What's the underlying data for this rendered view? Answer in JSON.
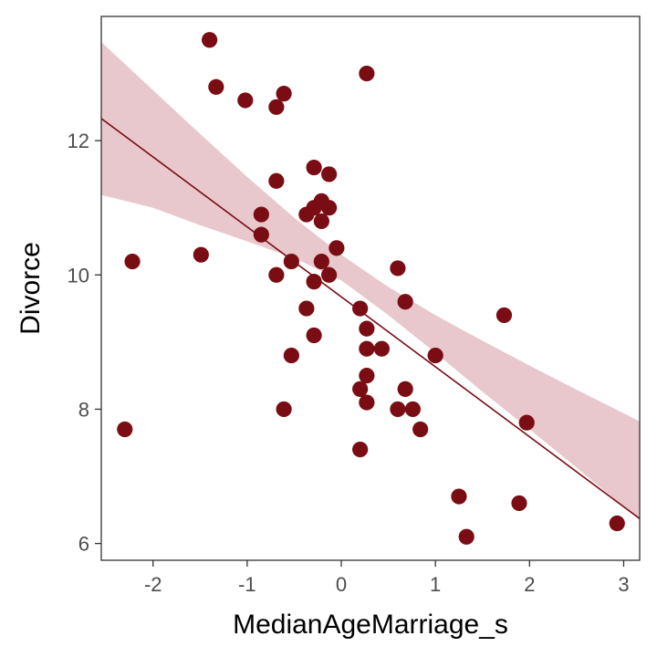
{
  "chart_data": {
    "type": "scatter",
    "xlabel": "MedianAgeMarriage_s",
    "ylabel": "Divorce",
    "xlim": [
      -2.55,
      3.17
    ],
    "ylim": [
      5.75,
      13.85
    ],
    "x_ticks": [
      -2,
      -1,
      0,
      1,
      2,
      3
    ],
    "x_tick_labels": [
      "-2",
      "-1",
      "0",
      "1",
      "2",
      "3"
    ],
    "y_ticks": [
      6,
      8,
      10,
      12
    ],
    "y_tick_labels": [
      "6",
      "8",
      "10",
      "12"
    ],
    "grid": false,
    "colors": {
      "points": "#7a0c14",
      "line": "#7a0c14",
      "band": "#e8c8cc"
    },
    "points": [
      {
        "x": -1.4,
        "y": 13.5
      },
      {
        "x": 0.27,
        "y": 13.0
      },
      {
        "x": -1.33,
        "y": 12.8
      },
      {
        "x": -0.61,
        "y": 12.7
      },
      {
        "x": -1.02,
        "y": 12.6
      },
      {
        "x": -0.69,
        "y": 12.5
      },
      {
        "x": -0.29,
        "y": 11.6
      },
      {
        "x": -0.13,
        "y": 11.5
      },
      {
        "x": -0.69,
        "y": 11.4
      },
      {
        "x": -0.21,
        "y": 11.1
      },
      {
        "x": -0.29,
        "y": 11.0
      },
      {
        "x": -0.13,
        "y": 11.0
      },
      {
        "x": -0.37,
        "y": 10.9
      },
      {
        "x": -0.85,
        "y": 10.9
      },
      {
        "x": -0.21,
        "y": 10.8
      },
      {
        "x": -0.85,
        "y": 10.6
      },
      {
        "x": -0.05,
        "y": 10.4
      },
      {
        "x": -1.49,
        "y": 10.3
      },
      {
        "x": -2.22,
        "y": 10.2
      },
      {
        "x": -0.53,
        "y": 10.2
      },
      {
        "x": -0.21,
        "y": 10.2
      },
      {
        "x": 0.6,
        "y": 10.1
      },
      {
        "x": -0.69,
        "y": 10.0
      },
      {
        "x": -0.13,
        "y": 10.0
      },
      {
        "x": -0.29,
        "y": 9.9
      },
      {
        "x": 0.68,
        "y": 9.6
      },
      {
        "x": 0.2,
        "y": 9.5
      },
      {
        "x": -0.37,
        "y": 9.5
      },
      {
        "x": 1.73,
        "y": 9.4
      },
      {
        "x": 0.27,
        "y": 9.2
      },
      {
        "x": -0.29,
        "y": 9.1
      },
      {
        "x": 0.27,
        "y": 8.9
      },
      {
        "x": 0.43,
        "y": 8.9
      },
      {
        "x": 1.0,
        "y": 8.8
      },
      {
        "x": -0.53,
        "y": 8.8
      },
      {
        "x": 0.27,
        "y": 8.5
      },
      {
        "x": 0.2,
        "y": 8.3
      },
      {
        "x": 0.68,
        "y": 8.3
      },
      {
        "x": 0.27,
        "y": 8.1
      },
      {
        "x": -0.61,
        "y": 8.0
      },
      {
        "x": 0.6,
        "y": 8.0
      },
      {
        "x": 0.76,
        "y": 8.0
      },
      {
        "x": 1.97,
        "y": 7.8
      },
      {
        "x": -2.3,
        "y": 7.7
      },
      {
        "x": 0.84,
        "y": 7.7
      },
      {
        "x": 0.2,
        "y": 7.4
      },
      {
        "x": 1.25,
        "y": 6.7
      },
      {
        "x": 1.89,
        "y": 6.6
      },
      {
        "x": 2.93,
        "y": 6.3
      },
      {
        "x": 1.33,
        "y": 6.1
      }
    ],
    "fit_line": {
      "x": [
        -2.55,
        3.17
      ],
      "y": [
        12.33,
        6.37
      ]
    },
    "band": {
      "x": [
        -2.55,
        -2.0,
        -1.5,
        -1.0,
        -0.5,
        0.0,
        0.5,
        1.0,
        1.5,
        2.0,
        2.5,
        3.17
      ],
      "upper": [
        13.47,
        12.75,
        12.1,
        11.46,
        10.85,
        10.3,
        9.82,
        9.4,
        9.02,
        8.65,
        8.29,
        7.82
      ],
      "lower": [
        11.19,
        11.0,
        10.74,
        10.5,
        10.25,
        9.92,
        9.4,
        8.84,
        8.26,
        7.7,
        7.13,
        6.35
      ]
    }
  }
}
